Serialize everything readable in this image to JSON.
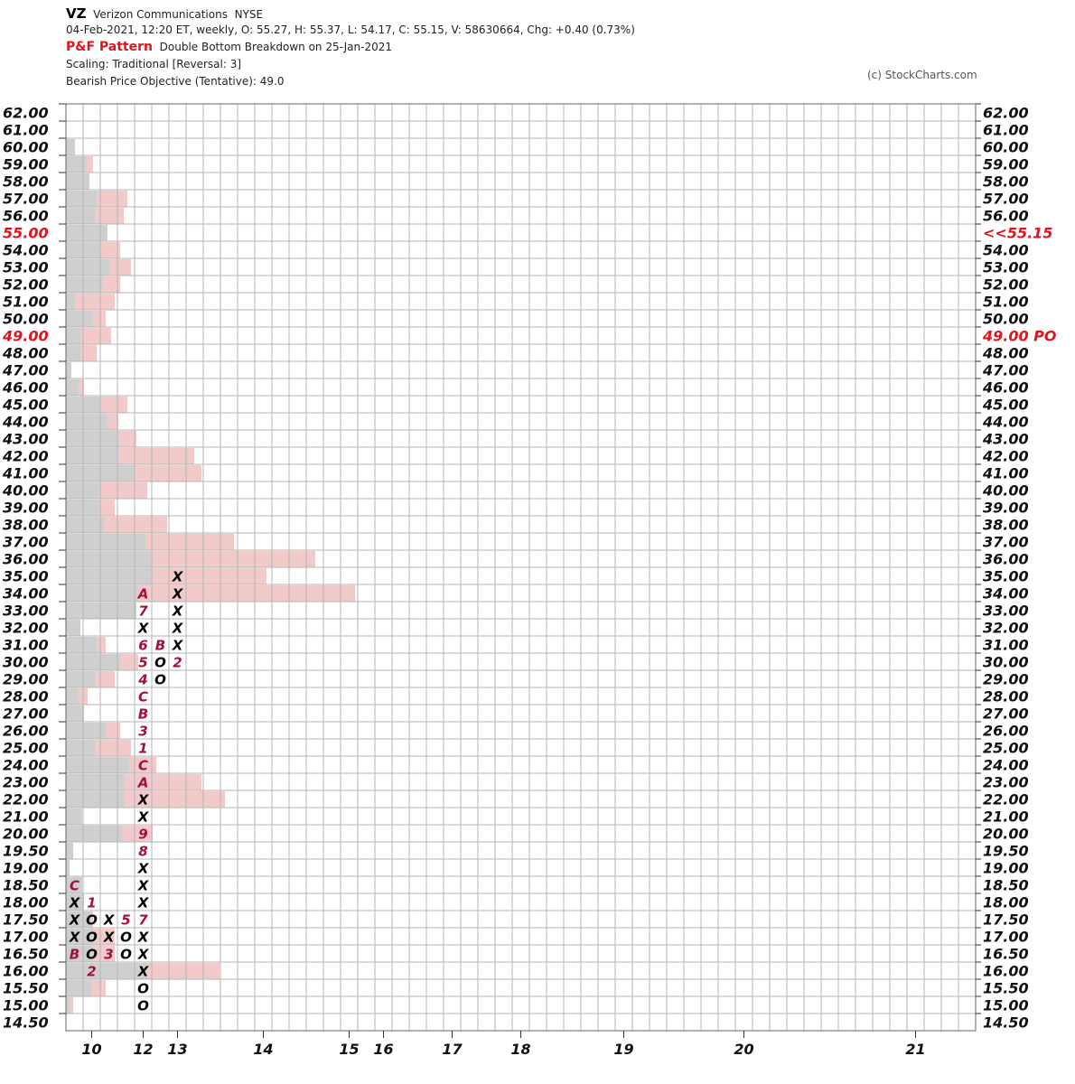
{
  "header": {
    "symbol": "VZ",
    "company": "Verizon Communications",
    "exchange": "NYSE",
    "quote": "04-Feb-2021, 12:20 ET, weekly, O: 55.27, H: 55.37, L: 54.17, C: 55.15, V: 58630664, Chg: +0.40 (0.73%)",
    "pattern_label": "P&F Pattern",
    "pattern_text": "Double Bottom Breakdown on 25-Jan-2021",
    "scaling": "Scaling: Traditional [Reversal: 3]",
    "objective": "Bearish Price Objective (Tentative): 49.0",
    "copyright": "(c) StockCharts.com"
  },
  "chart_data": {
    "type": "point-and-figure",
    "y_levels": [
      "62.00",
      "61.00",
      "60.00",
      "59.00",
      "58.00",
      "57.00",
      "56.00",
      "55.00",
      "54.00",
      "53.00",
      "52.00",
      "51.00",
      "50.00",
      "49.00",
      "48.00",
      "47.00",
      "46.00",
      "45.00",
      "44.00",
      "43.00",
      "42.00",
      "41.00",
      "40.00",
      "39.00",
      "38.00",
      "37.00",
      "36.00",
      "35.00",
      "34.00",
      "33.00",
      "32.00",
      "31.00",
      "30.00",
      "29.00",
      "28.00",
      "27.00",
      "26.00",
      "25.00",
      "24.00",
      "23.00",
      "22.00",
      "21.00",
      "20.00",
      "19.50",
      "19.00",
      "18.50",
      "18.00",
      "17.50",
      "17.00",
      "16.50",
      "16.00",
      "15.50",
      "15.00",
      "14.50"
    ],
    "highlighted_levels": [
      "55.00",
      "49.00"
    ],
    "right_labels": {
      "55.00": "<<55.15",
      "49.00": "49.00 PO"
    },
    "x_labels": [
      {
        "label": "10",
        "col": 1
      },
      {
        "label": "12",
        "col": 4
      },
      {
        "label": "13",
        "col": 6
      },
      {
        "label": "14",
        "col": 11
      },
      {
        "label": "15",
        "col": 16
      },
      {
        "label": "16",
        "col": 18
      },
      {
        "label": "17",
        "col": 22
      },
      {
        "label": "18",
        "col": 26
      },
      {
        "label": "19",
        "col": 32
      },
      {
        "label": "20",
        "col": 39
      },
      {
        "label": "21",
        "col": 49
      }
    ],
    "mark_colors": {
      "box": "#000000",
      "month": "#a0103e",
      "accent": "#e0141e"
    },
    "columns": [
      {
        "bottom": "16.50",
        "cells": [
          "B",
          "X",
          "X",
          "X",
          "C"
        ]
      },
      {
        "bottom": "16.00",
        "cells": [
          "2",
          "O",
          "O",
          "O",
          "1"
        ]
      },
      {
        "bottom": "16.50",
        "cells": [
          "3",
          "X",
          "X"
        ]
      },
      {
        "bottom": "16.50",
        "cells": [
          "O",
          "O",
          "5"
        ]
      },
      {
        "bottom": "15.00",
        "cells": [
          "O",
          "O",
          "X",
          "X",
          "X",
          "7",
          "X",
          "X",
          "X",
          "8",
          "9",
          "X",
          "X",
          "A",
          "C",
          "1",
          "3",
          "B",
          "C",
          "4",
          "5",
          "6",
          "X",
          "7",
          "A"
        ]
      },
      {
        "bottom": "29.00",
        "cells": [
          "O",
          "O",
          "B"
        ]
      },
      {
        "bottom": "30.00",
        "cells": [
          "2",
          "X",
          "X",
          "X",
          "X",
          "X"
        ]
      }
    ],
    "volume_by_price": [
      {
        "level": "60.00",
        "up": 0,
        "down": 10
      },
      {
        "level": "59.00",
        "up": 30,
        "down": 22
      },
      {
        "level": "58.00",
        "up": 22,
        "down": 26
      },
      {
        "level": "57.00",
        "up": 68,
        "down": 34
      },
      {
        "level": "56.00",
        "up": 64,
        "down": 32
      },
      {
        "level": "55.00",
        "up": 44,
        "down": 46
      },
      {
        "level": "54.00",
        "up": 60,
        "down": 38
      },
      {
        "level": "53.00",
        "up": 72,
        "down": 48
      },
      {
        "level": "52.00",
        "up": 60,
        "down": 40
      },
      {
        "level": "51.00",
        "up": 54,
        "down": 10
      },
      {
        "level": "50.00",
        "up": 44,
        "down": 30
      },
      {
        "level": "49.00",
        "up": 50,
        "down": 16
      },
      {
        "level": "48.00",
        "up": 34,
        "down": 16
      },
      {
        "level": "47.00",
        "up": 0,
        "down": 6
      },
      {
        "level": "46.00",
        "up": 20,
        "down": 14
      },
      {
        "level": "45.00",
        "up": 68,
        "down": 38
      },
      {
        "level": "44.00",
        "up": 58,
        "down": 46
      },
      {
        "level": "43.00",
        "up": 78,
        "down": 58
      },
      {
        "level": "42.00",
        "up": 142,
        "down": 58
      },
      {
        "level": "41.00",
        "up": 150,
        "down": 76
      },
      {
        "level": "40.00",
        "up": 90,
        "down": 36
      },
      {
        "level": "39.00",
        "up": 54,
        "down": 36
      },
      {
        "level": "38.00",
        "up": 112,
        "down": 42
      },
      {
        "level": "37.00",
        "up": 186,
        "down": 88
      },
      {
        "level": "36.00",
        "up": 276,
        "down": 94
      },
      {
        "level": "35.00",
        "up": 222,
        "down": 94
      },
      {
        "level": "34.00",
        "up": 320,
        "down": 80
      },
      {
        "level": "33.00",
        "up": 58,
        "down": 78
      },
      {
        "level": "32.00",
        "up": 0,
        "down": 16
      },
      {
        "level": "31.00",
        "up": 44,
        "down": 34
      },
      {
        "level": "30.00",
        "up": 80,
        "down": 60
      },
      {
        "level": "29.00",
        "up": 54,
        "down": 32
      },
      {
        "level": "28.00",
        "up": 24,
        "down": 14
      },
      {
        "level": "27.00",
        "up": 20,
        "down": 20
      },
      {
        "level": "26.00",
        "up": 60,
        "down": 44
      },
      {
        "level": "25.00",
        "up": 72,
        "down": 32
      },
      {
        "level": "24.00",
        "up": 100,
        "down": 70
      },
      {
        "level": "23.00",
        "up": 150,
        "down": 64
      },
      {
        "level": "22.00",
        "up": 176,
        "down": 64
      },
      {
        "level": "21.00",
        "up": 0,
        "down": 18
      },
      {
        "level": "20.00",
        "up": 96,
        "down": 62
      },
      {
        "level": "19.50",
        "up": 0,
        "down": 8
      },
      {
        "level": "19.00",
        "up": 0,
        "down": 4
      },
      {
        "level": "18.50",
        "up": 18,
        "down": 18
      },
      {
        "level": "18.00",
        "up": 20,
        "down": 20
      },
      {
        "level": "17.50",
        "up": 30,
        "down": 28
      },
      {
        "level": "17.00",
        "up": 54,
        "down": 30
      },
      {
        "level": "16.50",
        "up": 54,
        "down": 30
      },
      {
        "level": "16.00",
        "up": 170,
        "down": 90
      },
      {
        "level": "15.50",
        "up": 44,
        "down": 28
      },
      {
        "level": "15.00",
        "up": 8,
        "down": 4
      }
    ]
  }
}
